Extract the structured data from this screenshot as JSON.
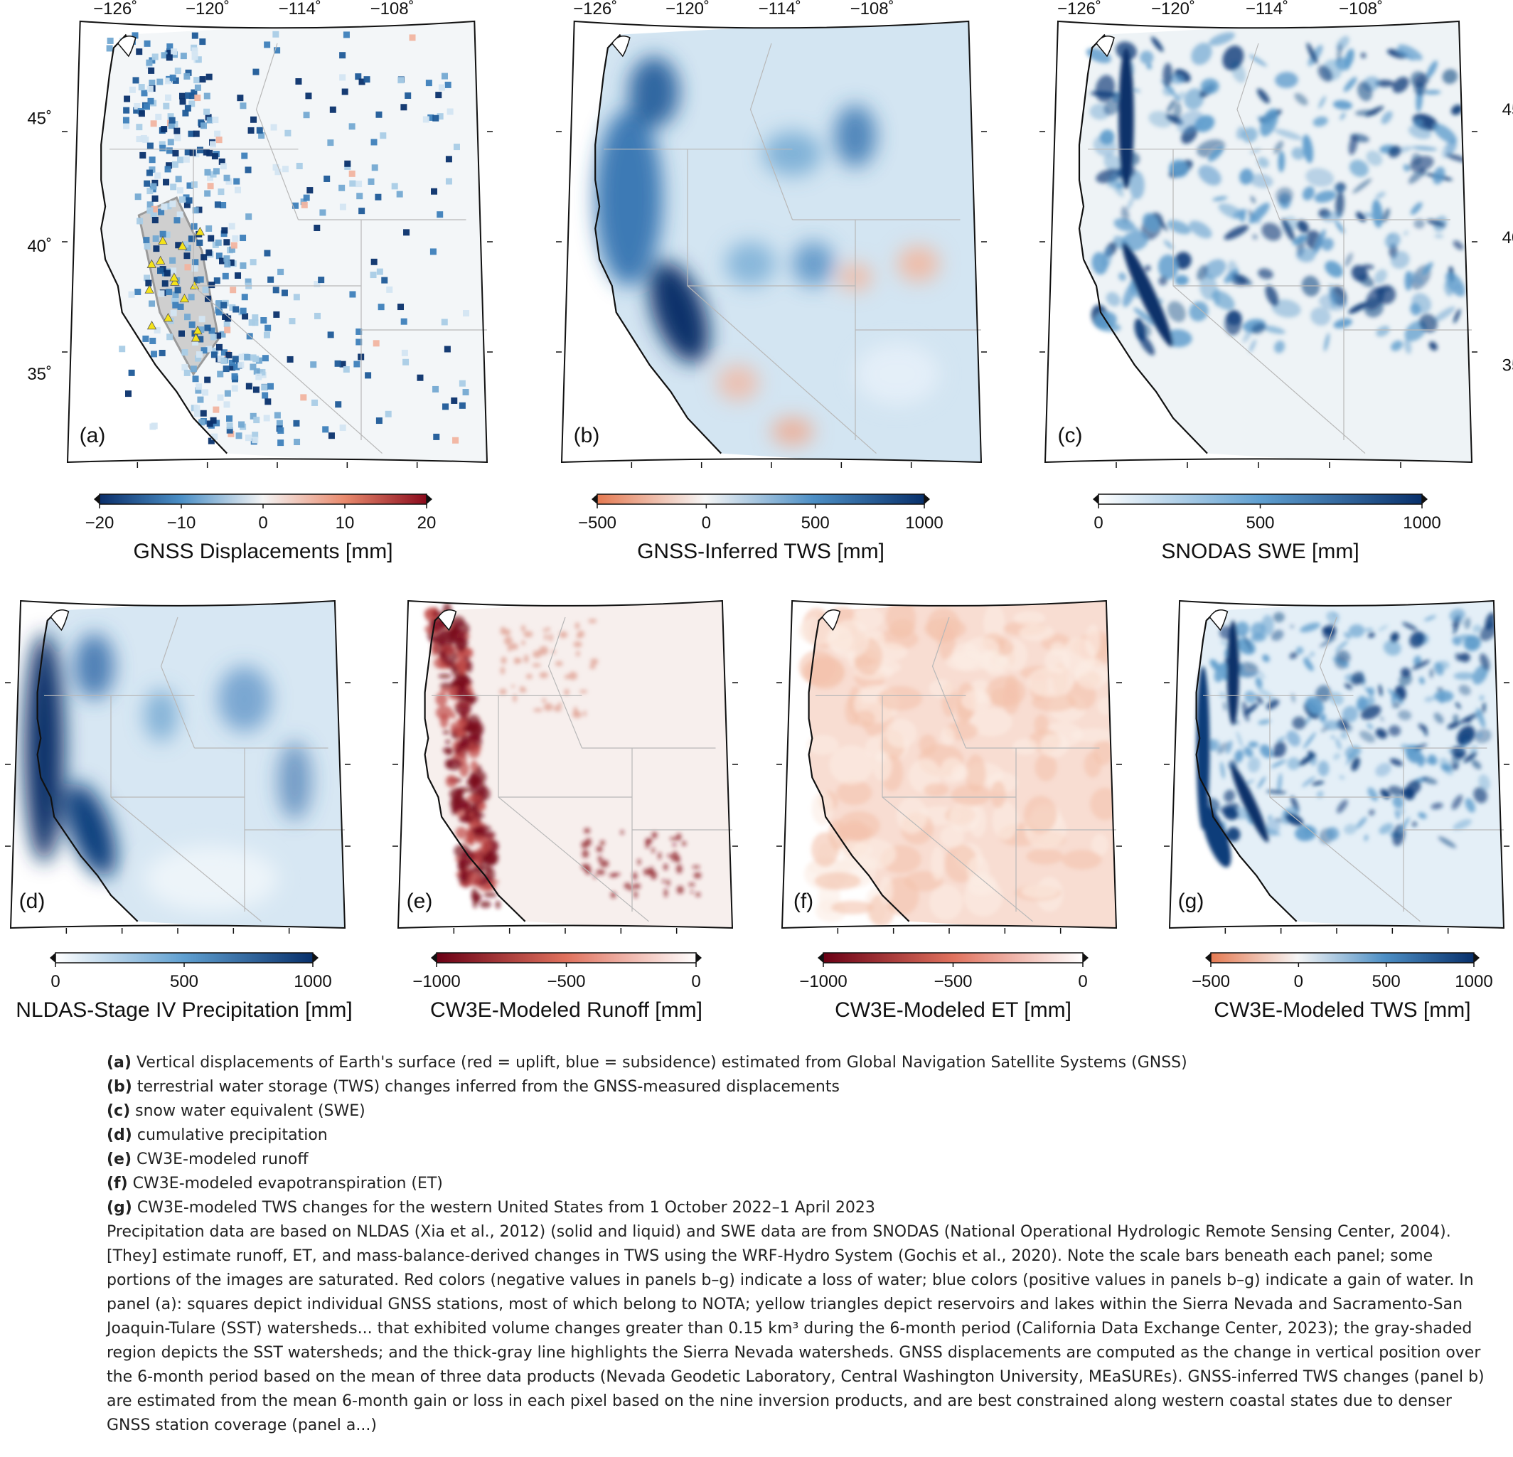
{
  "top_lon_ticks": [
    "−126˚",
    "−120˚",
    "−114˚",
    "−108˚"
  ],
  "lat_ticks": [
    "45˚",
    "40˚",
    "35˚"
  ],
  "panels": [
    {
      "letter": "(a)",
      "map": "stations",
      "colorbar": {
        "ticks": [
          "−20",
          "−10",
          "0",
          "10",
          "20"
        ],
        "label": "GNSS Displacements [mm]",
        "scheme": "diverging-blue-red"
      }
    },
    {
      "letter": "(b)",
      "map": "blue-field",
      "colorbar": {
        "ticks": [
          "−500",
          "0",
          "500",
          "1000"
        ],
        "label": "GNSS-Inferred TWS [mm]",
        "scheme": "red-white-blue"
      }
    },
    {
      "letter": "(c)",
      "map": "snow",
      "colorbar": {
        "ticks": [
          "0",
          "500",
          "1000"
        ],
        "label": "SNODAS SWE [mm]",
        "scheme": "white-blue"
      }
    },
    {
      "letter": "(d)",
      "map": "precip",
      "colorbar": {
        "ticks": [
          "0",
          "500",
          "1000"
        ],
        "label": "NLDAS-Stage IV Precipitation [mm]",
        "scheme": "white-blue"
      }
    },
    {
      "letter": "(e)",
      "map": "runoff",
      "colorbar": {
        "ticks": [
          "−1000",
          "−500",
          "0"
        ],
        "label": "CW3E-Modeled Runoff [mm]",
        "scheme": "red-white"
      }
    },
    {
      "letter": "(f)",
      "map": "et",
      "colorbar": {
        "ticks": [
          "−1000",
          "−500",
          "0"
        ],
        "label": "CW3E-Modeled ET [mm]",
        "scheme": "red-white"
      }
    },
    {
      "letter": "(g)",
      "map": "tws",
      "colorbar": {
        "ticks": [
          "−500",
          "0",
          "500",
          "1000"
        ],
        "label": "CW3E-Modeled TWS [mm]",
        "scheme": "red-white-blue"
      }
    }
  ],
  "caption": {
    "items": [
      {
        "key": "(a)",
        "text": " Vertical displacements of Earth's surface (red = uplift, blue = subsidence) estimated from Global Navigation Satellite Systems (GNSS)"
      },
      {
        "key": "(b)",
        "text": " terrestrial water storage (TWS) changes inferred from the GNSS-measured displacements"
      },
      {
        "key": "(c)",
        "text": " snow water equivalent (SWE)"
      },
      {
        "key": "(d)",
        "text": " cumulative precipitation"
      },
      {
        "key": "(e)",
        "text": " CW3E-modeled runoff"
      },
      {
        "key": "(f)",
        "text": " CW3E-modeled evapotranspiration (ET)"
      },
      {
        "key": "(g)",
        "text": " CW3E-modeled TWS changes for the western United States from 1 October 2022–1 April 2023"
      }
    ],
    "paragraph": "Precipitation data are based on NLDAS (Xia et al., 2012) (solid and liquid) and SWE data are from SNODAS (National Operational Hydrologic Remote Sensing Center, 2004). [They] estimate runoff, ET, and mass-balance-derived changes in TWS using the WRF-Hydro System (Gochis et al., 2020). Note the scale bars beneath each panel; some portions of the images are saturated. Red colors (negative values in panels b–g) indicate a loss of water; blue colors (positive values in panels b–g) indicate a gain of water. In panel (a): squares depict individual GNSS stations, most of which belong to NOTA; yellow triangles depict reservoirs and lakes within the Sierra Nevada and Sacramento-San Joaquin-Tulare (SST) watersheds... that exhibited volume changes greater than 0.15 km³ during the 6-month period (California Data Exchange Center, 2023); the gray-shaded region depicts the SST watersheds; and the thick-gray line highlights the Sierra Nevada watersheds. GNSS displacements are computed as the change in vertical position over the 6-month period based on the mean of three data products (Nevada Geodetic Laboratory, Central Washington University, MEaSUREs). GNSS-inferred TWS changes (panel b) are estimated from the mean 6-month gain or loss in each pixel based on the nine inversion products, and are best constrained along western coastal states due to denser GNSS station coverage (panel a...)"
  }
}
